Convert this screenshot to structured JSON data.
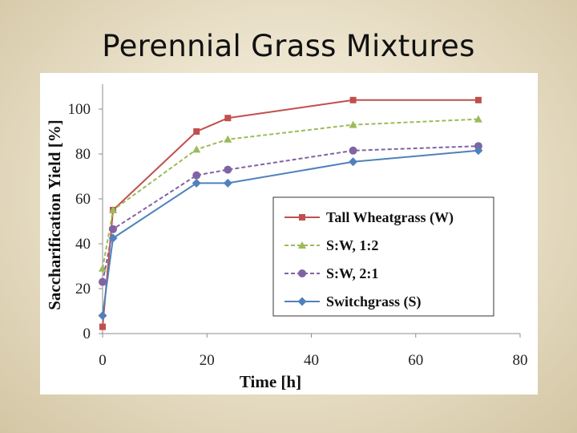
{
  "slide": {
    "title": "Perennial Grass Mixtures"
  },
  "chart_data": {
    "type": "line",
    "title": "",
    "xlabel": "Time [h]",
    "ylabel": "Saccharification Yield [%]",
    "xlim": [
      0,
      80
    ],
    "ylim": [
      0,
      110
    ],
    "xticks": [
      0,
      20,
      40,
      60,
      80
    ],
    "yticks": [
      0,
      20,
      40,
      60,
      80,
      100
    ],
    "grid": false,
    "legend_position": "center-right",
    "series": [
      {
        "name": "Tall Wheatgrass (W)",
        "color": "#c0504d",
        "marker": "square",
        "dash": "solid",
        "points": [
          [
            0,
            3
          ],
          [
            2,
            55
          ],
          [
            18,
            90
          ],
          [
            24,
            96
          ],
          [
            48,
            104
          ],
          [
            72,
            104
          ]
        ]
      },
      {
        "name": "S:W, 1:2",
        "color": "#9bbb59",
        "marker": "triangle",
        "dash": "dashed",
        "points": [
          [
            0,
            29
          ],
          [
            2,
            55
          ],
          [
            18,
            82
          ],
          [
            24,
            86.5
          ],
          [
            48,
            93
          ],
          [
            72,
            95.5
          ]
        ]
      },
      {
        "name": "S:W, 2:1",
        "color": "#8064a2",
        "marker": "circle",
        "dash": "dashed",
        "points": [
          [
            0,
            23
          ],
          [
            2,
            46.5
          ],
          [
            18,
            70.5
          ],
          [
            24,
            73
          ],
          [
            48,
            81.5
          ],
          [
            72,
            83.5
          ]
        ]
      },
      {
        "name": "Switchgrass (S)",
        "color": "#4f81bd",
        "marker": "diamond",
        "dash": "solid",
        "points": [
          [
            0,
            8
          ],
          [
            2,
            42.5
          ],
          [
            18,
            67
          ],
          [
            24,
            67
          ],
          [
            48,
            76.5
          ],
          [
            72,
            81.5
          ]
        ]
      }
    ]
  }
}
